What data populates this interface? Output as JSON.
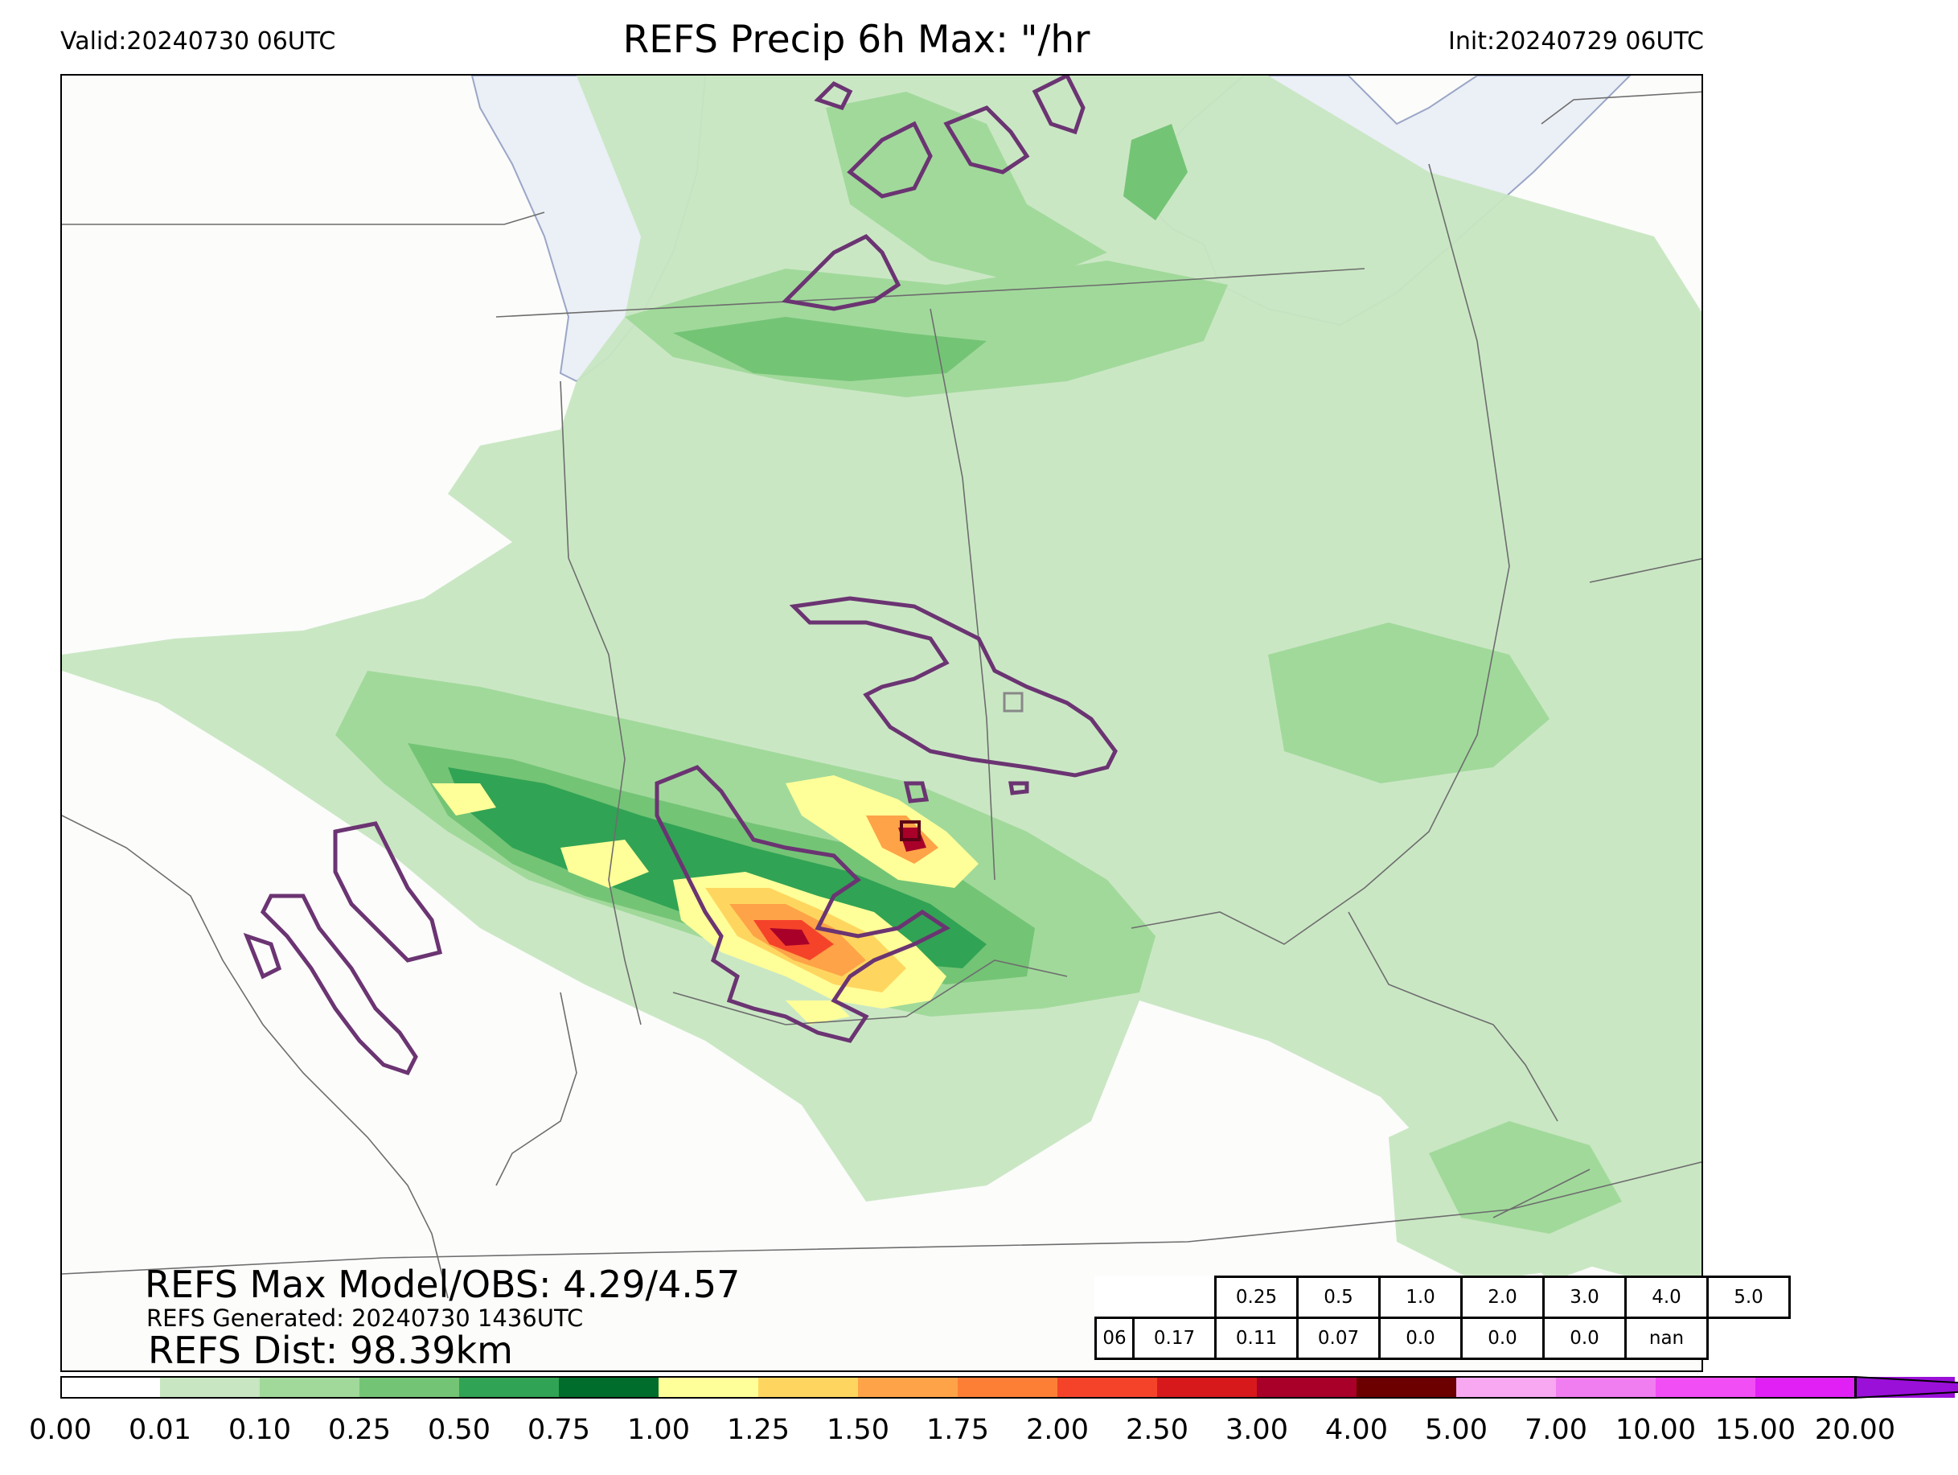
{
  "header": {
    "valid": "Valid:20240730 06UTC",
    "title": "REFS Precip 6h Max: \"/hr",
    "init": "Init:20240729 06UTC"
  },
  "stats": {
    "max_model_obs": "REFS Max Model/OBS: 4.29/4.57",
    "generated": "REFS Generated: 20240730 1436UTC",
    "distance": "REFS Dist: 98.39km"
  },
  "threshold_table": {
    "thresholds": [
      "0.25",
      "0.5",
      "1.0",
      "2.0",
      "3.0",
      "4.0",
      "5.0"
    ],
    "hour": "06",
    "values": [
      "0.17",
      "0.11",
      "0.07",
      "0.0",
      "0.0",
      "0.0",
      "nan"
    ]
  },
  "colorbar": {
    "ticks": [
      "0.00",
      "0.01",
      "0.10",
      "0.25",
      "0.50",
      "0.75",
      "1.00",
      "1.25",
      "1.50",
      "1.75",
      "2.00",
      "2.50",
      "3.00",
      "4.00",
      "5.00",
      "7.00",
      "10.00",
      "15.00",
      "20.00"
    ],
    "colors": [
      "#ffffff",
      "#c7e6c1",
      "#a1d99b",
      "#74c476",
      "#31a354",
      "#006d2c",
      "#ffff99",
      "#fed65f",
      "#fea347",
      "#fd7f36",
      "#f5432a",
      "#d7191c",
      "#a80029",
      "#6c0000",
      "#f7a8f0",
      "#f07ef0",
      "#f24ef5",
      "#e020f5",
      "#9a10d8"
    ]
  }
}
